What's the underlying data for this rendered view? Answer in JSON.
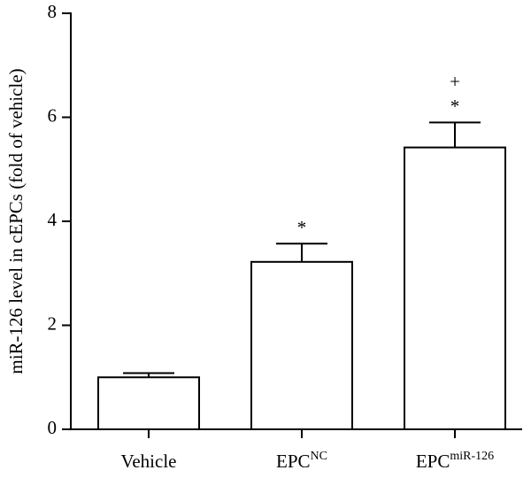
{
  "chart_data": {
    "type": "bar",
    "ylabel": "miR-126 level in cEPCs (fold of vehicle)",
    "categories": [
      [
        "Vehicle"
      ],
      [
        "EPC",
        "NC"
      ],
      [
        "EPC",
        "miR-126"
      ]
    ],
    "values": [
      1.0,
      3.22,
      5.42
    ],
    "errors": [
      0.08,
      0.35,
      0.48
    ],
    "bar_annotations": [
      [],
      [
        "*"
      ],
      [
        "+",
        "*"
      ]
    ],
    "color": "#ffffff",
    "ylim": [
      0,
      8
    ],
    "yticks": [
      0,
      2,
      4,
      6,
      8
    ]
  }
}
